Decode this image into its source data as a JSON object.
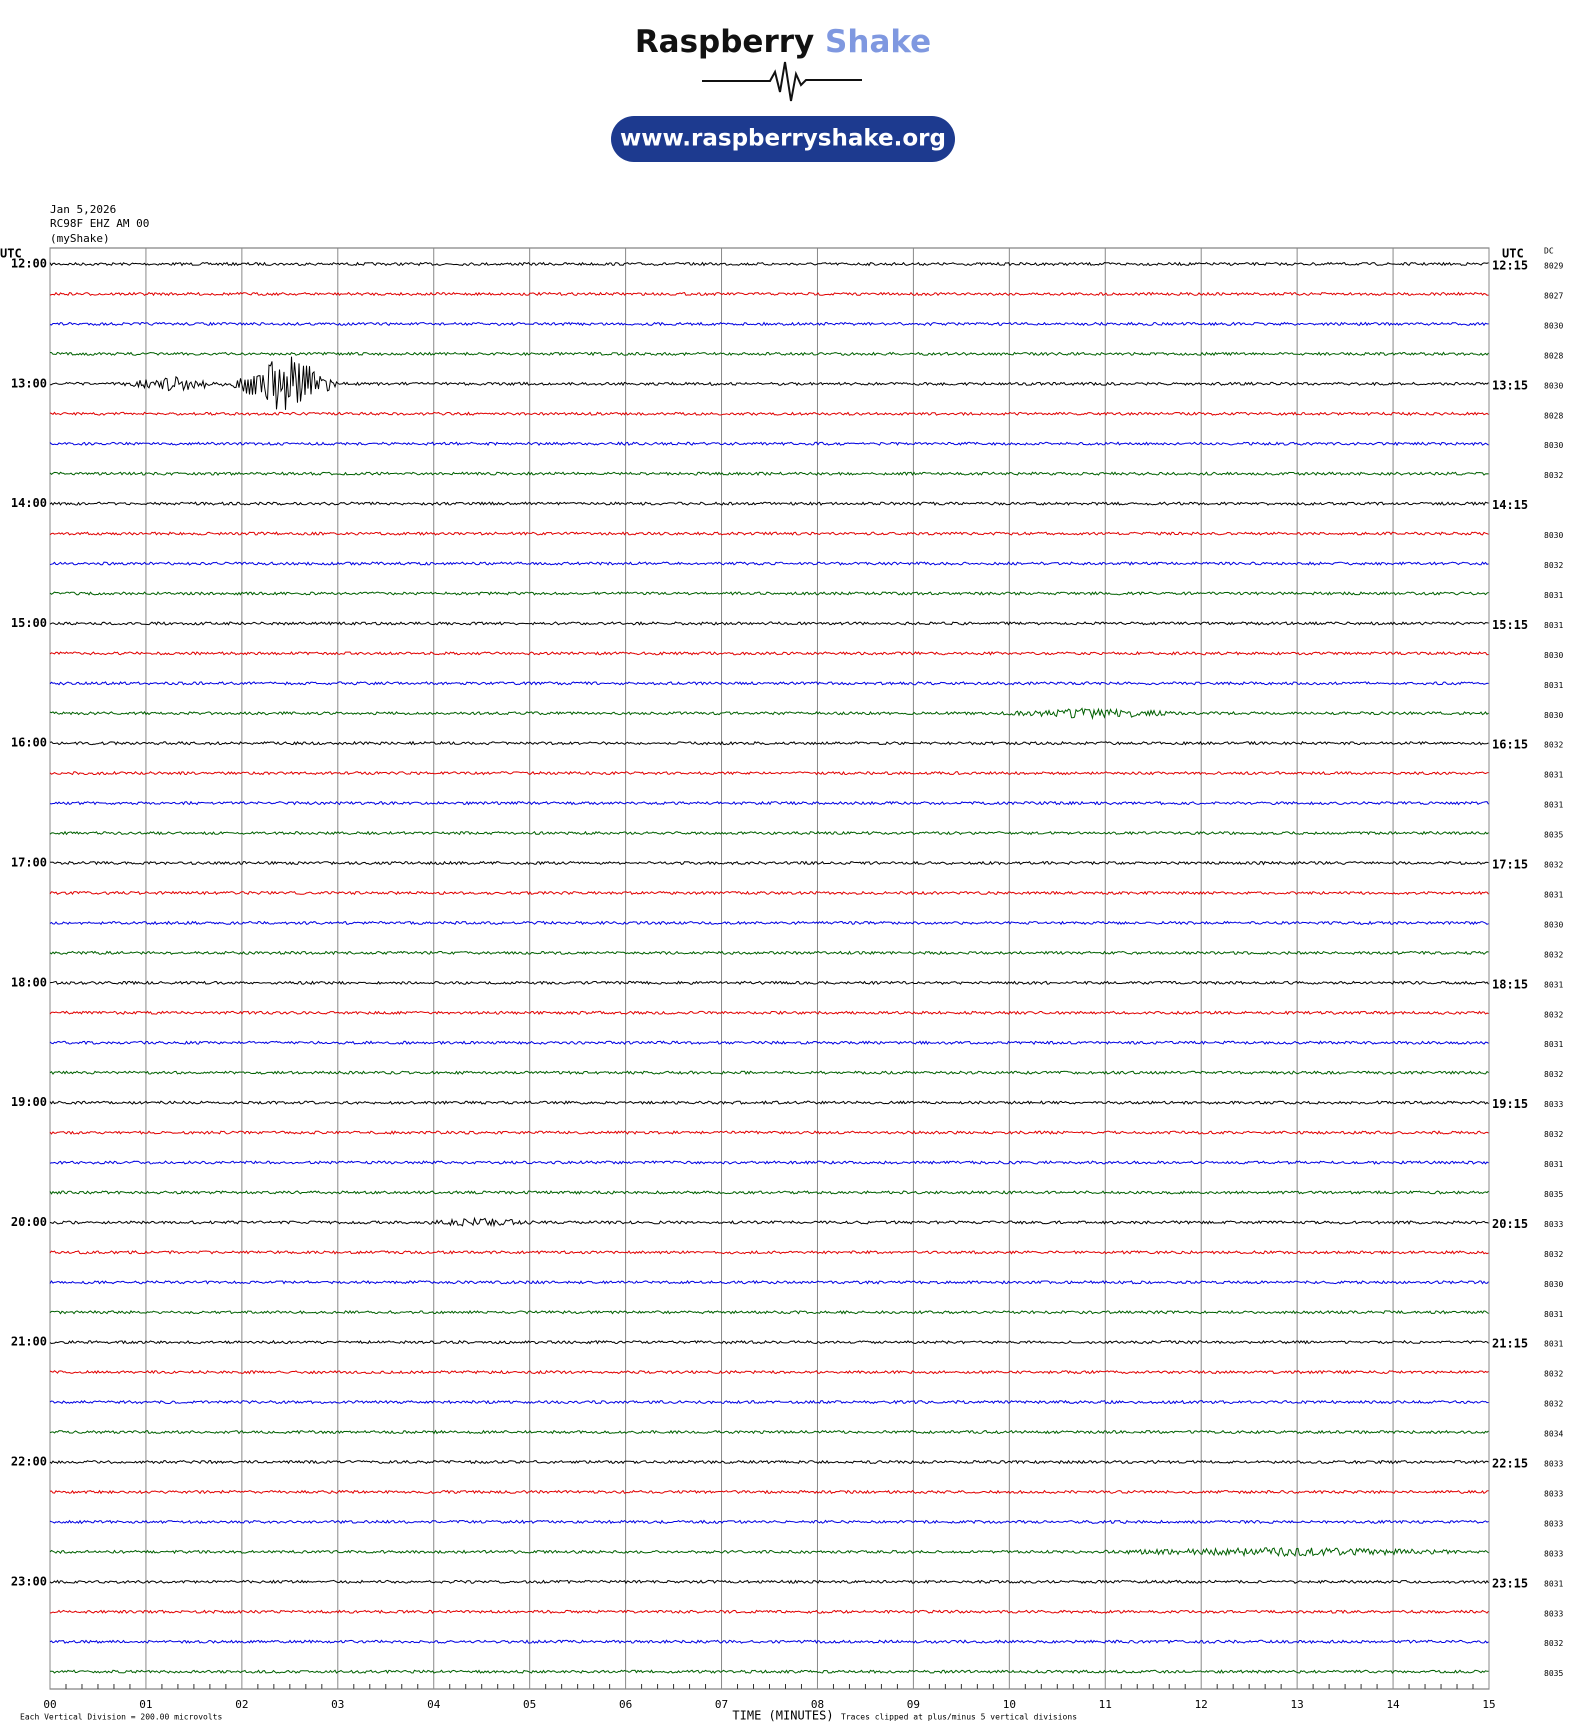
{
  "header": {
    "logo_word1": "Raspberry",
    "logo_word2": "Shake",
    "url": "www.raspberryshake.org"
  },
  "info": {
    "date": "Jan 5,2026",
    "station": "RC98F EHZ AM 00",
    "source": "(myShake)"
  },
  "plot": {
    "left_axis_title": "UTC",
    "right_axis_title": "UTC",
    "dc_title": "DC",
    "left_labels": [
      "12:00",
      "13:00",
      "14:00",
      "15:00",
      "16:00",
      "17:00",
      "18:00",
      "19:00",
      "20:00",
      "21:00",
      "22:00",
      "23:00"
    ],
    "right_labels": [
      "12:15",
      "13:15",
      "14:15",
      "15:15",
      "16:15",
      "17:15",
      "18:15",
      "19:15",
      "20:15",
      "21:15",
      "22:15",
      "23:15"
    ],
    "dc_values": [
      "8029",
      "8027",
      "8030",
      "8028",
      "8030",
      "8028",
      "8030",
      "8032",
      null,
      "8030",
      "8032",
      "8031",
      "8031",
      "8030",
      "8031",
      "8030",
      "8032",
      "8031",
      "8031",
      "8035",
      "8032",
      "8031",
      "8030",
      "8032",
      "8031",
      "8032",
      "8031",
      "8032",
      "8033",
      "8032",
      "8031",
      "8035",
      "8033",
      "8032",
      "8030",
      "8031",
      "8031",
      "8032",
      "8032",
      "8034",
      "8033",
      "8033",
      "8033",
      "8033",
      "8031",
      "8033",
      "8032",
      "8035"
    ],
    "trace_colors": [
      "#000000",
      "#e00000",
      "#0000e0",
      "#006000"
    ],
    "xticks": [
      "00",
      "01",
      "02",
      "03",
      "04",
      "05",
      "06",
      "07",
      "08",
      "09",
      "10",
      "11",
      "12",
      "13",
      "14",
      "15"
    ],
    "xlabel": "TIME (MINUTES)",
    "scale_note": "Each Vertical Division =  200.00 microvolts",
    "clip_note": "Traces clipped at plus/minus 5 vertical divisions"
  }
}
